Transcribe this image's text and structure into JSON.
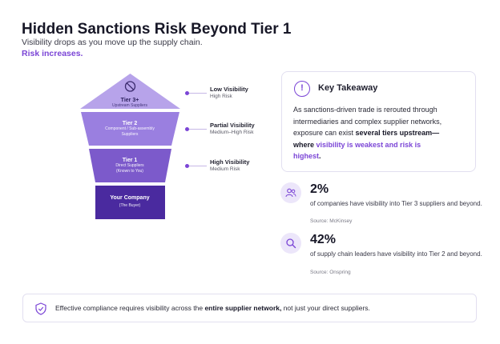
{
  "header": {
    "title": "Hidden Sanctions Risk Beyond Tier 1",
    "subtitle": "Visibility drops as you move up the supply chain.",
    "emphasis": "Risk increases."
  },
  "funnel": {
    "tiers": [
      {
        "title": "Tier 3+",
        "sub": "Upstream Suppliers",
        "sub2": "",
        "color": "#b7a3ea"
      },
      {
        "title": "Tier 2",
        "sub": "Component / Sub-assembly",
        "sub2": "Suppliers",
        "color": "#9a7fe0"
      },
      {
        "title": "Tier 1",
        "sub": "Direct Suppliers",
        "sub2": "(Known to You)",
        "color": "#7c5acb"
      },
      {
        "title": "Your Company",
        "sub": "(The Buyer)",
        "sub2": "",
        "color": "#4a2a9f"
      }
    ],
    "visibility": [
      {
        "title": "Low Visibility",
        "risk": "High Risk"
      },
      {
        "title": "Partial Visibility",
        "risk": "Medium–High Risk"
      },
      {
        "title": "High Visibility",
        "risk": "Medium Risk"
      }
    ],
    "icons": {
      "tier3": "no-visibility-icon"
    }
  },
  "takeaway": {
    "icon": "exclamation-icon",
    "title": "Key Takeaway",
    "body_1": "As sanctions-driven trade is rerouted through intermediaries and complex supplier networks, exposure can exist ",
    "bold_1": "several tiers upstream—",
    "bold_2": "where ",
    "purple": "visibility is weakest and risk is",
    "purple_end": "highest",
    "end": "."
  },
  "stats": [
    {
      "icon": "people-icon",
      "value": "2%",
      "desc": "of companies have visibility into Tier 3 suppliers and beyond.",
      "source": "Source: McKinsey"
    },
    {
      "icon": "search-icon",
      "value": "42%",
      "desc": "of supply chain leaders have visibility into Tier 2 and beyond.",
      "source": "Source: Onspring"
    }
  ],
  "footer": {
    "icon": "shield-check-icon",
    "text_1": "Effective compliance requires visibility across the ",
    "bold": "entire supplier network,",
    "text_2": " not just your direct suppliers."
  },
  "colors": {
    "accent": "#7b45d6",
    "dark_purple": "#4a2a9f"
  }
}
